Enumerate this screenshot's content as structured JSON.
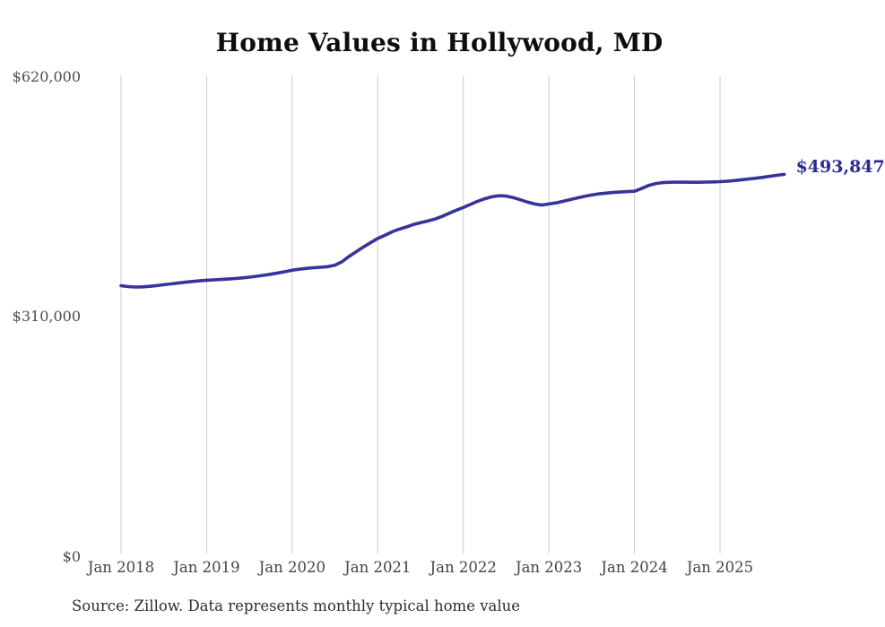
{
  "header": {
    "title": "Home Values in Hollywood, MD"
  },
  "footer": {
    "source_note": "Source: Zillow. Data represents monthly typical home value"
  },
  "colors": {
    "line": "#37339c",
    "end_label": "#2b2b8e",
    "gridline": "#cccccc",
    "tick_text": "#48484b",
    "title_text": "#0e0e0e",
    "background": "#ffffff"
  },
  "chart_data": {
    "type": "line",
    "title": "Home Values in Hollywood, MD",
    "xlabel": "",
    "ylabel": "",
    "grid": "vertical-only",
    "legend": "none",
    "ylim": [
      0,
      620000
    ],
    "y_ticks": [
      {
        "label": "$0",
        "value": 0
      },
      {
        "label": "$310,000",
        "value": 310000
      },
      {
        "label": "$620,000",
        "value": 620000
      }
    ],
    "x_tick_labels": [
      "Jan 2018",
      "Jan 2019",
      "Jan 2020",
      "Jan 2021",
      "Jan 2022",
      "Jan 2023",
      "Jan 2024",
      "Jan 2025"
    ],
    "end_label": "$493,847",
    "end_value": 493847,
    "series": [
      {
        "name": "Monthly typical home value",
        "x": [
          "2018-01",
          "2018-02",
          "2018-03",
          "2018-04",
          "2018-05",
          "2018-06",
          "2018-07",
          "2018-08",
          "2018-09",
          "2018-10",
          "2018-11",
          "2018-12",
          "2019-01",
          "2019-02",
          "2019-03",
          "2019-04",
          "2019-05",
          "2019-06",
          "2019-07",
          "2019-08",
          "2019-09",
          "2019-10",
          "2019-11",
          "2019-12",
          "2020-01",
          "2020-02",
          "2020-03",
          "2020-04",
          "2020-05",
          "2020-06",
          "2020-07",
          "2020-08",
          "2020-09",
          "2020-10",
          "2020-11",
          "2020-12",
          "2021-01",
          "2021-02",
          "2021-03",
          "2021-04",
          "2021-05",
          "2021-06",
          "2021-07",
          "2021-08",
          "2021-09",
          "2021-10",
          "2021-11",
          "2021-12",
          "2022-01",
          "2022-02",
          "2022-03",
          "2022-04",
          "2022-05",
          "2022-06",
          "2022-07",
          "2022-08",
          "2022-09",
          "2022-10",
          "2022-11",
          "2022-12",
          "2023-01",
          "2023-02",
          "2023-03",
          "2023-04",
          "2023-05",
          "2023-06",
          "2023-07",
          "2023-08",
          "2023-09",
          "2023-10",
          "2023-11",
          "2023-12",
          "2024-01",
          "2024-02",
          "2024-03",
          "2024-04",
          "2024-05",
          "2024-06",
          "2024-07",
          "2024-08",
          "2024-09",
          "2024-10",
          "2024-11",
          "2024-12",
          "2025-01",
          "2025-02",
          "2025-03",
          "2025-04",
          "2025-05",
          "2025-06",
          "2025-07",
          "2025-08",
          "2025-09",
          "2025-10"
        ],
        "values": [
          350000,
          348800,
          348200,
          348500,
          349200,
          350100,
          351200,
          352300,
          353400,
          354500,
          355400,
          356200,
          357000,
          357500,
          358000,
          358600,
          359300,
          360100,
          361000,
          362100,
          363400,
          364800,
          366400,
          368100,
          370000,
          371300,
          372400,
          373200,
          373800,
          374500,
          376500,
          381000,
          388000,
          394000,
          400000,
          405500,
          411000,
          415000,
          419500,
          423000,
          425800,
          429000,
          431500,
          433500,
          436000,
          439500,
          443500,
          447500,
          451000,
          455000,
          459000,
          462300,
          464800,
          466200,
          465800,
          463800,
          461000,
          458000,
          455500,
          454200,
          455500,
          457000,
          459000,
          461200,
          463400,
          465400,
          467200,
          468600,
          469600,
          470400,
          471000,
          471500,
          472000,
          475500,
          479500,
          482000,
          483200,
          483600,
          483800,
          483700,
          483600,
          483600,
          483800,
          484100,
          484400,
          485000,
          485800,
          486800,
          487800,
          488800,
          490000,
          491400,
          492600,
          493847
        ]
      }
    ]
  }
}
